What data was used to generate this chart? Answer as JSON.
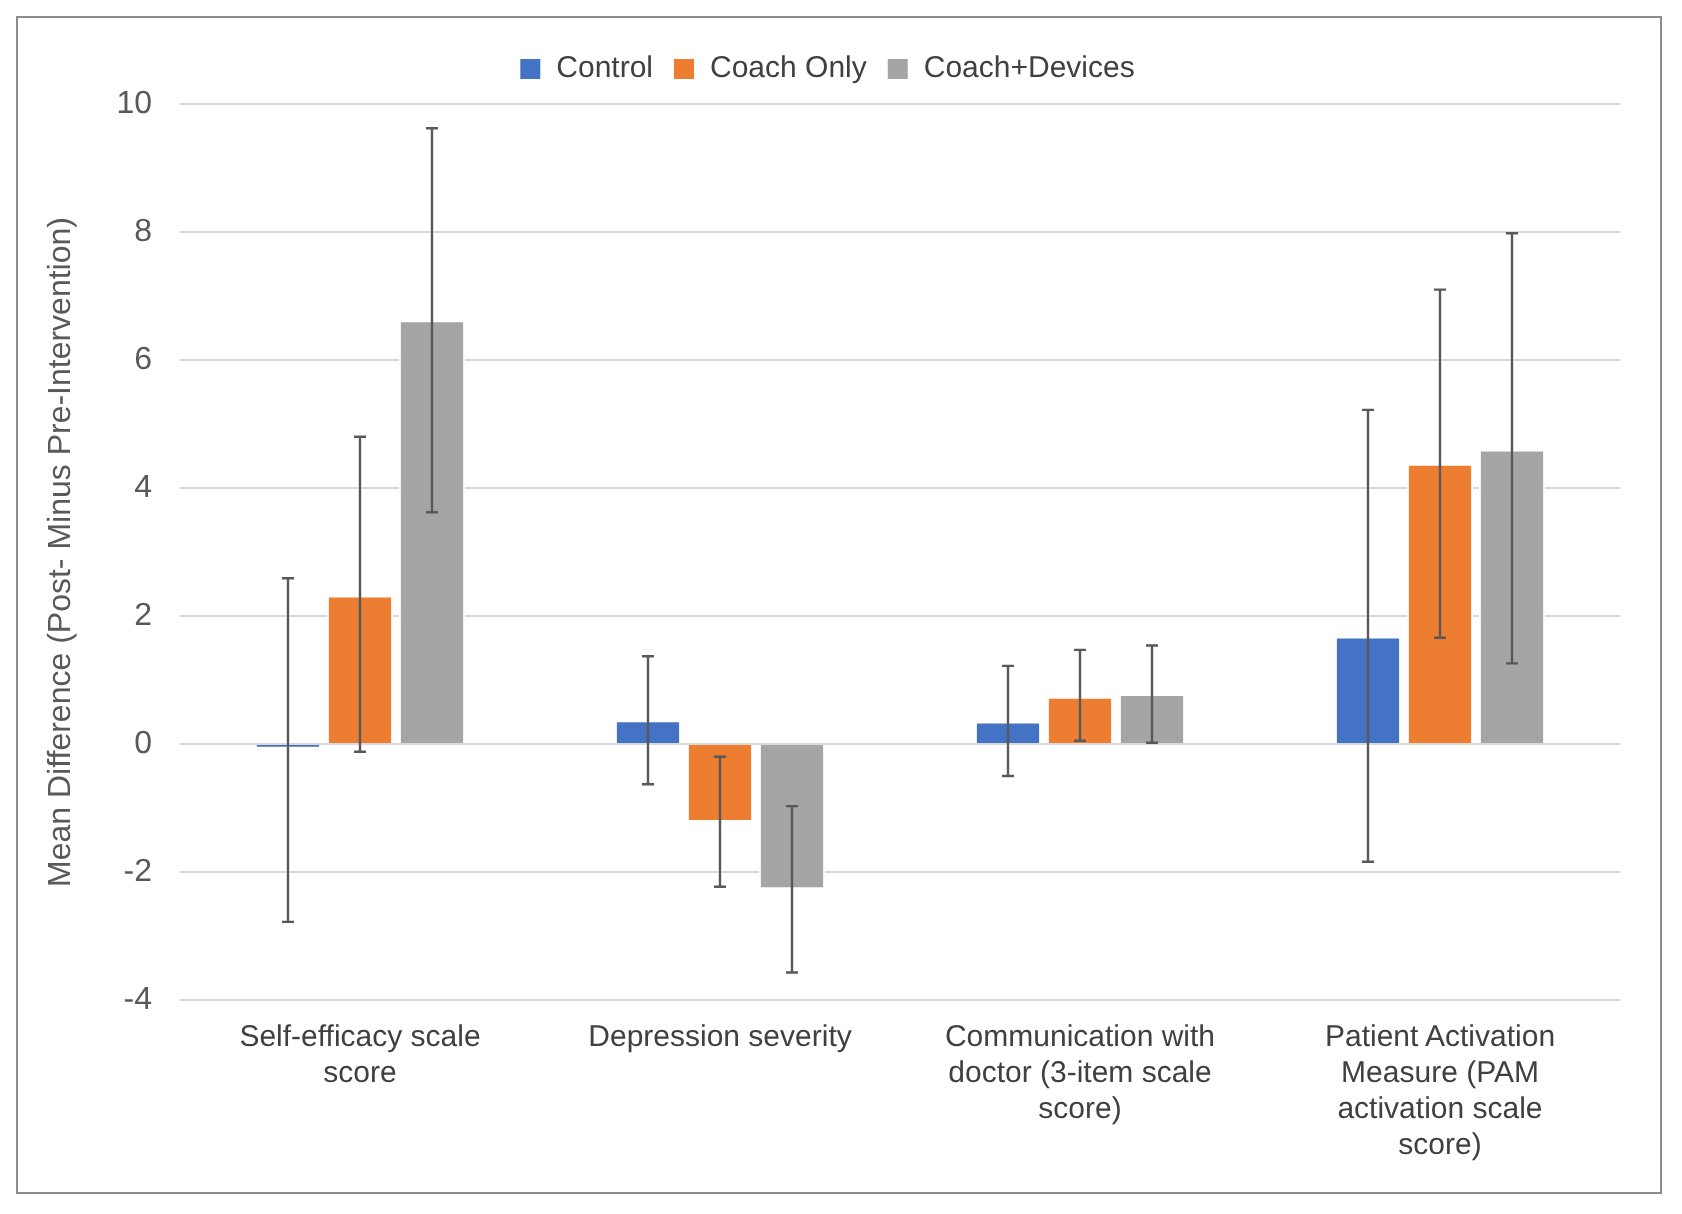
{
  "chart_data": {
    "type": "bar",
    "ylabel": "Mean Difference (Post- Minus Pre-Intervention)",
    "categories": [
      "Self-efficacy scale score",
      "Depression severity",
      "Communication with doctor (3-item scale score)",
      "Patient Activation Measure (PAM activation scale score)"
    ],
    "series": [
      {
        "name": "Control",
        "color": "#4472c4",
        "values": [
          -0.07,
          0.37,
          0.35,
          1.68
        ],
        "errors": [
          [
            -2.78,
            2.59
          ],
          [
            -0.63,
            1.37
          ],
          [
            -0.5,
            1.22
          ],
          [
            -1.84,
            5.22
          ]
        ]
      },
      {
        "name": "Coach Only",
        "color": "#ed7d31",
        "values": [
          2.32,
          -1.22,
          0.74,
          4.38
        ],
        "errors": [
          [
            -0.12,
            4.8
          ],
          [
            -2.23,
            -0.2
          ],
          [
            0.05,
            1.47
          ],
          [
            1.66,
            7.1
          ]
        ]
      },
      {
        "name": "Coach+Devices",
        "color": "#a5a5a5",
        "values": [
          6.62,
          -2.27,
          0.78,
          4.6
        ],
        "errors": [
          [
            3.62,
            9.62
          ],
          [
            -3.57,
            -0.97
          ],
          [
            0.02,
            1.54
          ],
          [
            1.26,
            7.98
          ]
        ]
      }
    ],
    "ylim": [
      -4,
      10
    ],
    "yticks": [
      -4,
      -2,
      0,
      2,
      4,
      6,
      8,
      10
    ],
    "grid": "y",
    "legend": "top"
  }
}
